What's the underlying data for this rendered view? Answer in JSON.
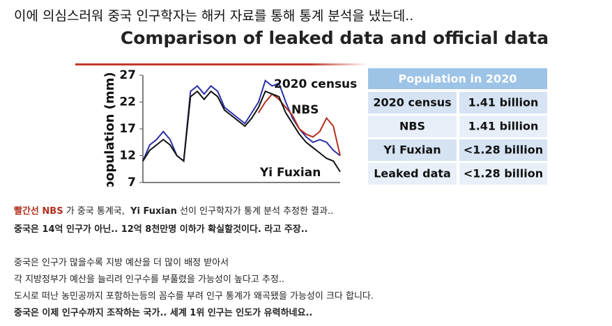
{
  "heading": "이에 의심스러워 중국 인구학자는 해커 자료를 통해 통계 분석을 냈는데..",
  "chart_data": {
    "type": "line",
    "title": "Comparison of leaked data and official data",
    "y_label": "population (mm)",
    "ylim": [
      7,
      27
    ],
    "yticks": [
      7,
      12,
      17,
      22,
      27
    ],
    "series": [
      {
        "name": "2020 census",
        "color": "#2a2fa6",
        "values": [
          11,
          14,
          15,
          16.5,
          15,
          12,
          11,
          24,
          25,
          23.5,
          25,
          24,
          21,
          20,
          19,
          18,
          20,
          22,
          26,
          25,
          25.5,
          22,
          19,
          17,
          15.5,
          14.5,
          15,
          14.5,
          13,
          12
        ]
      },
      {
        "name": "NBS",
        "color": "#b3301f",
        "values": [
          null,
          null,
          null,
          null,
          null,
          null,
          null,
          null,
          null,
          null,
          null,
          null,
          null,
          null,
          null,
          null,
          null,
          20,
          22,
          23.5,
          22.5,
          21,
          19.5,
          17,
          16,
          15.5,
          16.5,
          19,
          17.5,
          12
        ]
      },
      {
        "name": "Yi Fuxian",
        "color": "#111111",
        "values": [
          11,
          13,
          14,
          15,
          14,
          12,
          11,
          23,
          24,
          22.5,
          24,
          23,
          20.5,
          19.5,
          18.5,
          17.5,
          19,
          21,
          24,
          23.5,
          23,
          20,
          18,
          16,
          14.5,
          13.5,
          12.5,
          11.5,
          11,
          9
        ]
      }
    ]
  },
  "table": {
    "title": "Population in 2020",
    "rows": [
      [
        "2020 census",
        "1.41 billion"
      ],
      [
        "NBS",
        "1.41 billion"
      ],
      [
        "Yi Fuxian",
        "<1.28 billion"
      ],
      [
        "Leaked data",
        "<1.28 billion"
      ]
    ]
  },
  "lines": [
    [
      {
        "text": "빨간선 NBS",
        "color": "#b3301f",
        "bold": true
      },
      {
        "text": " 가 중국 통계국,  "
      },
      {
        "text": "Yi Fuxian",
        "bold": true
      },
      {
        "text": " 선이 인구학자가 통계 분석 추정한 결과.."
      }
    ],
    [
      {
        "text": "중국은 14억 인구가 아닌.. 12억 8천만명 이하가 확실할것이다. 라고 주장..",
        "bold": true
      }
    ],
    [
      {
        "text": "중국은 인구가 많을수록 지방 예산을 더 많이 배정 받아서"
      }
    ],
    [
      {
        "text": "각 지방정부가 예산을 늘리려 인구수를 부풀렸을 가능성이 높다고 추정.."
      }
    ],
    [
      {
        "text": "도시로 떠난 농민공까지 포함하는등의 꼼수를 부려 인구 통계가 왜곡됐을 가능성이 크다 합니다."
      }
    ],
    [
      {
        "text": "중국은 이제 인구수까지 조작하는 국가.. 세계 1위 인구는 인도가 유력하네요..",
        "bold": true
      }
    ]
  ]
}
